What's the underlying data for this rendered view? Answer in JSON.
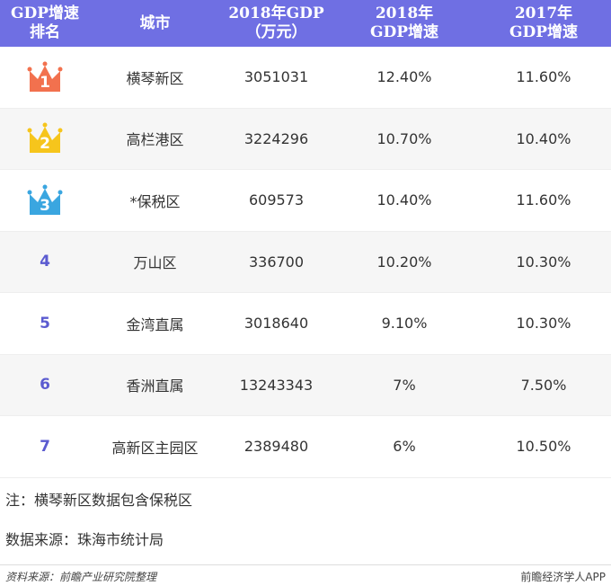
{
  "table": {
    "header": [
      [
        "GDP增速",
        "排名"
      ],
      [
        "城市"
      ],
      [
        "2018年GDP",
        "（万元）"
      ],
      [
        "2018年",
        "GDP增速"
      ],
      [
        "2017年",
        "GDP增速"
      ]
    ],
    "rows": [
      [
        "1",
        "横琴新区",
        "3051031",
        "12.40%",
        "11.60%"
      ],
      [
        "2",
        "高栏港区",
        "3224296",
        "10.70%",
        "10.40%"
      ],
      [
        "3",
        "*保税区",
        "609573",
        "10.40%",
        "11.60%"
      ],
      [
        "4",
        "万山区",
        "336700",
        "10.20%",
        "10.30%"
      ],
      [
        "5",
        "金湾直属",
        "3018640",
        "9.10%",
        "10.30%"
      ],
      [
        "6",
        "香洲直属",
        "13243343",
        "7%",
        "7.50%"
      ],
      [
        "7",
        "高新区主园区",
        "2389480",
        "6%",
        "10.50%"
      ]
    ]
  },
  "notes": [
    "注：横琴新区数据包含保税区",
    "数据来源：珠海市统计局"
  ],
  "footer": {
    "source": "资料来源：前瞻产业研究院整理",
    "brand": "前瞻经济学人APP"
  }
}
